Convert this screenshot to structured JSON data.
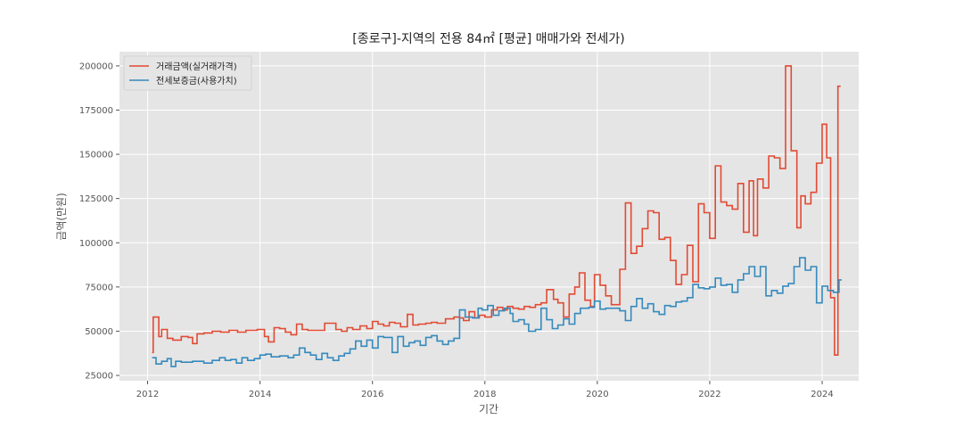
{
  "chart_data": {
    "type": "line",
    "style": "step",
    "title": "[종로구]-지역의 전용 84㎡ [평균] 매매가와 전세가)",
    "xlabel": "기간",
    "ylabel": "금액(만원)",
    "xlim": [
      2011.5,
      2024.65
    ],
    "ylim": [
      22000,
      208000
    ],
    "x_ticks": [
      2012,
      2014,
      2016,
      2018,
      2020,
      2022,
      2024
    ],
    "y_ticks": [
      25000,
      50000,
      75000,
      100000,
      125000,
      150000,
      175000,
      200000
    ],
    "grid": true,
    "legend_position": "top-left",
    "series": [
      {
        "name": "거래금액(실거래가격)",
        "color": "#E24A33",
        "points": [
          [
            2012.08,
            38000
          ],
          [
            2012.1,
            58000
          ],
          [
            2012.2,
            47000
          ],
          [
            2012.25,
            51000
          ],
          [
            2012.35,
            46000
          ],
          [
            2012.45,
            45000
          ],
          [
            2012.6,
            47000
          ],
          [
            2012.72,
            46500
          ],
          [
            2012.8,
            43000
          ],
          [
            2012.88,
            48500
          ],
          [
            2013.0,
            49000
          ],
          [
            2013.15,
            50000
          ],
          [
            2013.3,
            49500
          ],
          [
            2013.45,
            50500
          ],
          [
            2013.6,
            49500
          ],
          [
            2013.75,
            50500
          ],
          [
            2013.95,
            51000
          ],
          [
            2014.08,
            47000
          ],
          [
            2014.15,
            44000
          ],
          [
            2014.25,
            52000
          ],
          [
            2014.35,
            51500
          ],
          [
            2014.45,
            49500
          ],
          [
            2014.55,
            48000
          ],
          [
            2014.65,
            54000
          ],
          [
            2014.75,
            51000
          ],
          [
            2014.85,
            50500
          ],
          [
            2015.0,
            50500
          ],
          [
            2015.15,
            54500
          ],
          [
            2015.35,
            51000
          ],
          [
            2015.45,
            50000
          ],
          [
            2015.55,
            52000
          ],
          [
            2015.65,
            51000
          ],
          [
            2015.78,
            53000
          ],
          [
            2015.9,
            51500
          ],
          [
            2016.0,
            55500
          ],
          [
            2016.1,
            54000
          ],
          [
            2016.2,
            53000
          ],
          [
            2016.3,
            55000
          ],
          [
            2016.4,
            54500
          ],
          [
            2016.5,
            52500
          ],
          [
            2016.62,
            59500
          ],
          [
            2016.72,
            53500
          ],
          [
            2016.82,
            54000
          ],
          [
            2016.95,
            54500
          ],
          [
            2017.05,
            55000
          ],
          [
            2017.15,
            54500
          ],
          [
            2017.3,
            57000
          ],
          [
            2017.45,
            58000
          ],
          [
            2017.55,
            57500
          ],
          [
            2017.62,
            56000
          ],
          [
            2017.72,
            61000
          ],
          [
            2017.82,
            57500
          ],
          [
            2017.9,
            59000
          ],
          [
            2018.0,
            58000
          ],
          [
            2018.12,
            62000
          ],
          [
            2018.22,
            63500
          ],
          [
            2018.32,
            62000
          ],
          [
            2018.4,
            64000
          ],
          [
            2018.5,
            63000
          ],
          [
            2018.6,
            62500
          ],
          [
            2018.7,
            64000
          ],
          [
            2018.8,
            63500
          ],
          [
            2018.9,
            65000
          ],
          [
            2019.0,
            66000
          ],
          [
            2019.1,
            73500
          ],
          [
            2019.22,
            68000
          ],
          [
            2019.3,
            66000
          ],
          [
            2019.4,
            58000
          ],
          [
            2019.5,
            71000
          ],
          [
            2019.6,
            75000
          ],
          [
            2019.68,
            83000
          ],
          [
            2019.78,
            67500
          ],
          [
            2019.88,
            64000
          ],
          [
            2019.95,
            82000
          ],
          [
            2020.05,
            76000
          ],
          [
            2020.15,
            70000
          ],
          [
            2020.25,
            65000
          ],
          [
            2020.4,
            85000
          ],
          [
            2020.5,
            122500
          ],
          [
            2020.6,
            94000
          ],
          [
            2020.7,
            98000
          ],
          [
            2020.8,
            108000
          ],
          [
            2020.9,
            118000
          ],
          [
            2021.0,
            117000
          ],
          [
            2021.1,
            102000
          ],
          [
            2021.2,
            103000
          ],
          [
            2021.3,
            90000
          ],
          [
            2021.4,
            76500
          ],
          [
            2021.5,
            82000
          ],
          [
            2021.6,
            98500
          ],
          [
            2021.7,
            78000
          ],
          [
            2021.8,
            122000
          ],
          [
            2021.9,
            117000
          ],
          [
            2022.0,
            102500
          ],
          [
            2022.1,
            143500
          ],
          [
            2022.2,
            123000
          ],
          [
            2022.3,
            121000
          ],
          [
            2022.4,
            119000
          ],
          [
            2022.5,
            133500
          ],
          [
            2022.6,
            106000
          ],
          [
            2022.7,
            135000
          ],
          [
            2022.78,
            104000
          ],
          [
            2022.85,
            136000
          ],
          [
            2022.95,
            131000
          ],
          [
            2023.05,
            149000
          ],
          [
            2023.15,
            148000
          ],
          [
            2023.25,
            142000
          ],
          [
            2023.35,
            200000
          ],
          [
            2023.45,
            152000
          ],
          [
            2023.55,
            108500
          ],
          [
            2023.62,
            126500
          ],
          [
            2023.7,
            122000
          ],
          [
            2023.8,
            128500
          ],
          [
            2023.9,
            145000
          ],
          [
            2024.0,
            167000
          ],
          [
            2024.08,
            148000
          ],
          [
            2024.15,
            69000
          ],
          [
            2024.22,
            36500
          ],
          [
            2024.28,
            188500
          ]
        ]
      },
      {
        "name": "전세보증금(사용가치)",
        "color": "#348ABD",
        "points": [
          [
            2012.08,
            35000
          ],
          [
            2012.15,
            31500
          ],
          [
            2012.25,
            33000
          ],
          [
            2012.35,
            34500
          ],
          [
            2012.42,
            30000
          ],
          [
            2012.5,
            33000
          ],
          [
            2012.6,
            32500
          ],
          [
            2012.8,
            33000
          ],
          [
            2013.0,
            32000
          ],
          [
            2013.15,
            33500
          ],
          [
            2013.28,
            35000
          ],
          [
            2013.38,
            33500
          ],
          [
            2013.48,
            34000
          ],
          [
            2013.58,
            32000
          ],
          [
            2013.68,
            35000
          ],
          [
            2013.78,
            33500
          ],
          [
            2013.9,
            34500
          ],
          [
            2014.0,
            36500
          ],
          [
            2014.1,
            37000
          ],
          [
            2014.2,
            35500
          ],
          [
            2014.35,
            36000
          ],
          [
            2014.5,
            35000
          ],
          [
            2014.6,
            36500
          ],
          [
            2014.7,
            40500
          ],
          [
            2014.8,
            38000
          ],
          [
            2014.9,
            36500
          ],
          [
            2015.0,
            34000
          ],
          [
            2015.1,
            37500
          ],
          [
            2015.2,
            35000
          ],
          [
            2015.3,
            33500
          ],
          [
            2015.4,
            36000
          ],
          [
            2015.5,
            37500
          ],
          [
            2015.6,
            40000
          ],
          [
            2015.7,
            44500
          ],
          [
            2015.8,
            41500
          ],
          [
            2015.9,
            45000
          ],
          [
            2016.0,
            40500
          ],
          [
            2016.1,
            47000
          ],
          [
            2016.2,
            46500
          ],
          [
            2016.35,
            38000
          ],
          [
            2016.45,
            47000
          ],
          [
            2016.55,
            41500
          ],
          [
            2016.65,
            43500
          ],
          [
            2016.75,
            44500
          ],
          [
            2016.85,
            42000
          ],
          [
            2016.95,
            46500
          ],
          [
            2017.05,
            47500
          ],
          [
            2017.15,
            44500
          ],
          [
            2017.25,
            42500
          ],
          [
            2017.35,
            44500
          ],
          [
            2017.45,
            46000
          ],
          [
            2017.55,
            62000
          ],
          [
            2017.65,
            58000
          ],
          [
            2017.78,
            57500
          ],
          [
            2017.88,
            63000
          ],
          [
            2017.95,
            62000
          ],
          [
            2018.05,
            64500
          ],
          [
            2018.15,
            59000
          ],
          [
            2018.25,
            61500
          ],
          [
            2018.35,
            63000
          ],
          [
            2018.45,
            60000
          ],
          [
            2018.5,
            55500
          ],
          [
            2018.6,
            56500
          ],
          [
            2018.7,
            54000
          ],
          [
            2018.78,
            50000
          ],
          [
            2018.9,
            51000
          ],
          [
            2019.0,
            63000
          ],
          [
            2019.1,
            56500
          ],
          [
            2019.2,
            51500
          ],
          [
            2019.3,
            53500
          ],
          [
            2019.4,
            57000
          ],
          [
            2019.5,
            54000
          ],
          [
            2019.6,
            60000
          ],
          [
            2019.7,
            63000
          ],
          [
            2019.85,
            63500
          ],
          [
            2019.95,
            67000
          ],
          [
            2020.05,
            62500
          ],
          [
            2020.15,
            63000
          ],
          [
            2020.25,
            63000
          ],
          [
            2020.4,
            61500
          ],
          [
            2020.5,
            56000
          ],
          [
            2020.6,
            64000
          ],
          [
            2020.7,
            68500
          ],
          [
            2020.8,
            63000
          ],
          [
            2020.9,
            65500
          ],
          [
            2021.0,
            61000
          ],
          [
            2021.1,
            59500
          ],
          [
            2021.2,
            64500
          ],
          [
            2021.3,
            64000
          ],
          [
            2021.4,
            66500
          ],
          [
            2021.5,
            67000
          ],
          [
            2021.6,
            69000
          ],
          [
            2021.7,
            76500
          ],
          [
            2021.8,
            74500
          ],
          [
            2021.9,
            74000
          ],
          [
            2022.0,
            75000
          ],
          [
            2022.1,
            80000
          ],
          [
            2022.2,
            76000
          ],
          [
            2022.3,
            76500
          ],
          [
            2022.4,
            72000
          ],
          [
            2022.5,
            79000
          ],
          [
            2022.6,
            82500
          ],
          [
            2022.7,
            86500
          ],
          [
            2022.8,
            81000
          ],
          [
            2022.9,
            86500
          ],
          [
            2023.0,
            70000
          ],
          [
            2023.1,
            73000
          ],
          [
            2023.2,
            71500
          ],
          [
            2023.3,
            75500
          ],
          [
            2023.4,
            77000
          ],
          [
            2023.5,
            86500
          ],
          [
            2023.6,
            91500
          ],
          [
            2023.7,
            84500
          ],
          [
            2023.8,
            86500
          ],
          [
            2023.9,
            66000
          ],
          [
            2024.0,
            75500
          ],
          [
            2024.1,
            73000
          ],
          [
            2024.2,
            72000
          ],
          [
            2024.3,
            79000
          ]
        ]
      }
    ]
  }
}
